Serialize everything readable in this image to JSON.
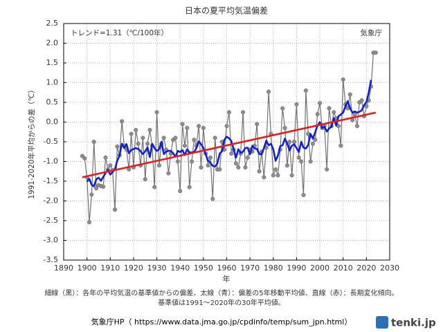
{
  "chart_data": {
    "type": "line",
    "title": "日本の夏平均気温偏差",
    "annotations": [
      "トレンド=1.31（℃/100年）",
      "気象庁"
    ],
    "y_label": "1991-2020年平均からの差（℃）",
    "x_label": "年",
    "notes": [
      "細線（黒）：各年の平均気温の基準値からの偏差、太線（青）：偏差の5年移動平均値、直線（赤）：長期変化傾向。",
      "基準値は1991〜2020年の30年平均値。"
    ],
    "source": "気象庁HP（ https://www.data.jma.go.jp/cpdinfo/temp/sum_jpn.html）",
    "logo": "tenki.jp",
    "x": [
      1898,
      1899,
      1900,
      1901,
      1902,
      1903,
      1904,
      1905,
      1906,
      1907,
      1908,
      1909,
      1910,
      1911,
      1912,
      1913,
      1914,
      1915,
      1916,
      1917,
      1918,
      1919,
      1920,
      1921,
      1922,
      1923,
      1924,
      1925,
      1926,
      1927,
      1928,
      1929,
      1930,
      1931,
      1932,
      1933,
      1934,
      1935,
      1936,
      1937,
      1938,
      1939,
      1940,
      1941,
      1942,
      1943,
      1944,
      1945,
      1946,
      1947,
      1948,
      1949,
      1950,
      1951,
      1952,
      1953,
      1954,
      1955,
      1956,
      1957,
      1958,
      1959,
      1960,
      1961,
      1962,
      1963,
      1964,
      1965,
      1966,
      1967,
      1968,
      1969,
      1970,
      1971,
      1972,
      1973,
      1974,
      1975,
      1976,
      1977,
      1978,
      1979,
      1980,
      1981,
      1982,
      1983,
      1984,
      1985,
      1986,
      1987,
      1988,
      1989,
      1990,
      1991,
      1992,
      1993,
      1994,
      1995,
      1996,
      1997,
      1998,
      1999,
      2000,
      2001,
      2002,
      2003,
      2004,
      2005,
      2006,
      2007,
      2008,
      2009,
      2010,
      2011,
      2012,
      2013,
      2014,
      2015,
      2016,
      2017,
      2018,
      2019,
      2020,
      2021,
      2022,
      2023,
      2024
    ],
    "series": [
      {
        "color": "#707070",
        "marker": true,
        "marker_color": "#8c8c8c",
        "width": 1.2,
        "values": [
          -0.86,
          -0.92,
          -1.4,
          -2.54,
          -1.84,
          -0.5,
          -1.68,
          -1.6,
          -1.62,
          -1.64,
          -0.9,
          -1.2,
          -1.1,
          -1.22,
          -2.22,
          -0.62,
          -0.84,
          0.02,
          -0.6,
          -0.7,
          -1.2,
          -0.3,
          -1.15,
          -0.2,
          -0.55,
          -1.1,
          -0.4,
          -1.45,
          -0.55,
          -0.2,
          -0.6,
          -1.65,
          0.25,
          -1.1,
          -0.55,
          -0.4,
          -0.7,
          -1.3,
          -0.8,
          -0.45,
          -0.4,
          -1.0,
          -1.75,
          -0.05,
          -0.6,
          -0.15,
          -1.65,
          -1.0,
          -0.45,
          -0.6,
          -0.1,
          -1.15,
          -0.15,
          -0.8,
          -1.1,
          -0.9,
          -1.95,
          -0.4,
          -1.2,
          -1.2,
          -0.5,
          -0.7,
          -0.1,
          0.25,
          -0.8,
          -0.7,
          -1.05,
          -1.15,
          -0.8,
          0.25,
          -1.15,
          -0.9,
          -0.7,
          -0.75,
          -0.6,
          -0.05,
          -1.25,
          -0.75,
          -1.4,
          -0.65,
          0.77,
          -0.3,
          -1.35,
          -1.2,
          -1.35,
          -0.7,
          0.35,
          -0.15,
          -1.1,
          -0.5,
          -1.35,
          -0.5,
          0.45,
          -0.9,
          -1.0,
          -1.85,
          0.8,
          -0.3,
          -1.0,
          -0.55,
          -0.45,
          0.2,
          0.48,
          -0.15,
          -0.1,
          -1.2,
          0.35,
          -0.1,
          0.25,
          0.1,
          -0.1,
          -0.6,
          1.08,
          0.45,
          0.35,
          0.7,
          0.05,
          0.2,
          -0.1,
          0.5,
          0.55,
          0.15,
          0.4,
          0.55,
          0.9,
          1.76,
          1.76
        ]
      },
      {
        "color": "#1020d0",
        "marker": false,
        "width": 2.6,
        "values": [
          null,
          null,
          -1.51,
          -1.44,
          -1.59,
          -1.63,
          -1.45,
          -1.41,
          -1.49,
          -1.39,
          -1.29,
          -1.21,
          -1.33,
          -1.27,
          -1.2,
          -0.98,
          -0.85,
          -0.55,
          -0.66,
          -0.56,
          -0.79,
          -0.71,
          -0.68,
          -0.66,
          -0.68,
          -0.74,
          -0.81,
          -0.74,
          -0.64,
          -0.89,
          -0.55,
          -0.66,
          -0.73,
          -0.69,
          -0.5,
          -0.81,
          -0.75,
          -0.73,
          -0.73,
          -0.79,
          -0.88,
          -0.73,
          -0.76,
          -0.71,
          -0.84,
          -0.69,
          -0.77,
          -0.77,
          -0.76,
          -0.66,
          -0.49,
          -0.56,
          -0.66,
          -0.82,
          -0.98,
          -1.03,
          -1.11,
          -1.13,
          -1.05,
          -0.8,
          -0.74,
          -0.45,
          -0.37,
          -0.41,
          -0.48,
          -0.69,
          -0.9,
          -0.69,
          -0.78,
          -0.75,
          -0.66,
          -0.65,
          -0.82,
          -0.6,
          -0.67,
          -0.68,
          -0.81,
          -0.82,
          -0.66,
          -0.47,
          -0.59,
          -0.55,
          -0.69,
          -0.98,
          -0.85,
          -0.61,
          -0.59,
          -0.42,
          -0.55,
          -0.72,
          -0.6,
          -0.56,
          -0.66,
          -0.76,
          -0.5,
          -0.65,
          -0.67,
          -0.58,
          -0.3,
          -0.42,
          -0.26,
          -0.09,
          0.0,
          -0.15,
          -0.12,
          -0.24,
          -0.16,
          -0.12,
          0.1,
          -0.09,
          0.15,
          0.19,
          0.24,
          0.4,
          0.53,
          0.35,
          0.24,
          0.27,
          0.24,
          0.26,
          0.3,
          0.43,
          0.51,
          0.75,
          1.07,
          null,
          null
        ]
      },
      {
        "color": "#e02020",
        "marker": false,
        "width": 2.6,
        "x": [
          1898,
          2024
        ],
        "values": [
          -1.4,
          0.24
        ]
      }
    ],
    "xlim": [
      1890,
      2030
    ],
    "xticks": [
      1890,
      1900,
      1910,
      1920,
      1930,
      1940,
      1950,
      1960,
      1970,
      1980,
      1990,
      2000,
      2010,
      2020,
      2030
    ],
    "ylim": [
      -3.5,
      2.5
    ],
    "yticks": [
      {
        "value": -3.5,
        "label": "-3.5"
      },
      {
        "value": -3,
        "label": "-3.0"
      },
      {
        "value": -2.5,
        "label": "-2.5"
      },
      {
        "value": -2,
        "label": "-2.0"
      },
      {
        "value": -1.5,
        "label": "-1.5"
      },
      {
        "value": -1,
        "label": "-1.0"
      },
      {
        "value": -0.5,
        "label": "-0.5"
      },
      {
        "value": 0,
        "label": "0.0"
      },
      0.5,
      {
        "value": 1,
        "label": "1.0"
      },
      1.5,
      {
        "value": 2,
        "label": "2.0"
      },
      2.5
    ],
    "grid": true
  }
}
